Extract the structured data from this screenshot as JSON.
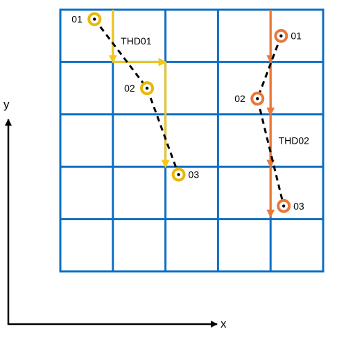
{
  "axes": {
    "x_label": "x",
    "y_label": "y"
  },
  "grid": {
    "rows": 5,
    "cols": 5,
    "color": "#0B6FC4"
  },
  "tracks": [
    {
      "name": "THD01",
      "color": "#F5C518",
      "ring_color": "#E8B800",
      "observations": [
        {
          "label": "01",
          "col": 0.65,
          "row": 0.18
        },
        {
          "label": "02",
          "col": 1.65,
          "row": 1.5
        },
        {
          "label": "03",
          "col": 2.25,
          "row": 3.15
        }
      ],
      "path": [
        [
          1,
          0
        ],
        [
          1,
          1
        ],
        [
          2,
          1
        ],
        [
          2,
          3
        ]
      ],
      "label_pos": {
        "col": 1.15,
        "row": 0.6
      }
    },
    {
      "name": "THD02",
      "color": "#E8793A",
      "ring_color": "#E8793A",
      "observations": [
        {
          "label": "01",
          "col": 4.2,
          "row": 0.5
        },
        {
          "label": "02",
          "col": 3.75,
          "row": 1.7
        },
        {
          "label": "03",
          "col": 4.25,
          "row": 3.75
        }
      ],
      "path": [
        [
          4,
          0
        ],
        [
          4,
          1
        ],
        [
          4,
          2
        ],
        [
          4,
          3
        ],
        [
          4,
          3.95
        ]
      ],
      "label_pos": {
        "col": 4.15,
        "row": 2.5
      }
    }
  ]
}
